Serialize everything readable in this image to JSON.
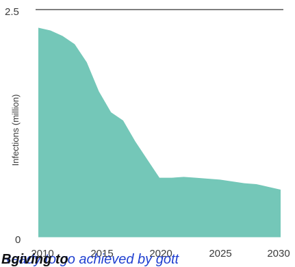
{
  "chart_data": {
    "type": "area",
    "title": "",
    "xlabel": "",
    "ylabel": "Infections (million)",
    "x": [
      2010,
      2011,
      2012,
      2013,
      2014,
      2015,
      2016,
      2017,
      2018,
      2019,
      2020,
      2021,
      2022,
      2023,
      2024,
      2025,
      2026,
      2027,
      2028,
      2029,
      2030
    ],
    "y": [
      2.3,
      2.27,
      2.21,
      2.12,
      1.92,
      1.6,
      1.37,
      1.28,
      1.05,
      0.85,
      0.65,
      0.65,
      0.66,
      0.65,
      0.64,
      0.63,
      0.61,
      0.59,
      0.58,
      0.55,
      0.52
    ],
    "xlim": [
      2010,
      2030
    ],
    "ylim": [
      0,
      2.5
    ],
    "x_ticks": [
      "2010",
      "2015",
      "2020",
      "2025",
      "2030"
    ],
    "y_ticks": [
      "0",
      "2.5"
    ],
    "grid": "top line at 2.5 only",
    "legend": "none",
    "fill_color": "#74c7b8",
    "gridline_color": "#333333"
  },
  "overlay": {
    "line_a": "Ready to go achieved by gott",
    "line_b": "Bgiving to"
  }
}
